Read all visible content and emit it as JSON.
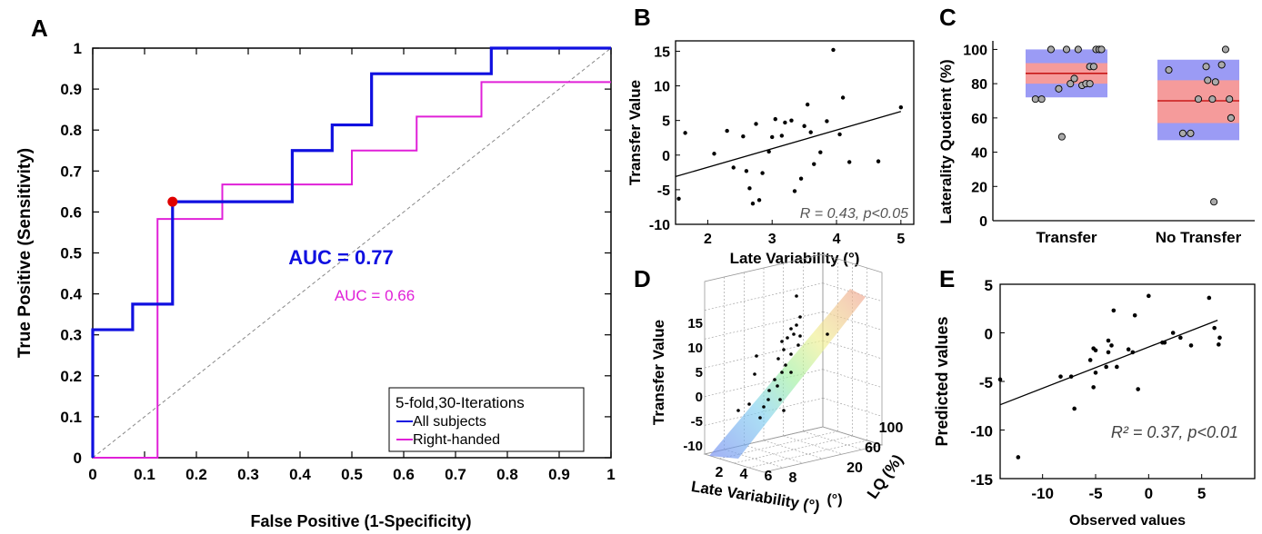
{
  "panels": {
    "A": "A",
    "B": "B",
    "C": "C",
    "D": "D",
    "E": "E"
  },
  "chart_data": [
    {
      "id": "A",
      "type": "line",
      "xlabel": "False Positive (1-Specificity)",
      "ylabel": "True Positive (Sensitivity)",
      "xlim": [
        0,
        1
      ],
      "ylim": [
        0,
        1
      ],
      "xticks": [
        "0",
        "0.1",
        "0.2",
        "0.3",
        "0.4",
        "0.5",
        "0.6",
        "0.7",
        "0.8",
        "0.9",
        "1"
      ],
      "yticks": [
        "0",
        "0.1",
        "0.2",
        "0.3",
        "0.4",
        "0.5",
        "0.6",
        "0.7",
        "0.8",
        "0.9",
        "1"
      ],
      "series": [
        {
          "name": "All subjects",
          "color": "#1010e0",
          "x": [
            0,
            0,
            0.077,
            0.077,
            0.154,
            0.154,
            0.385,
            0.385,
            0.462,
            0.462,
            0.538,
            0.538,
            0.769,
            0.769,
            1
          ],
          "y": [
            0,
            0.3125,
            0.3125,
            0.375,
            0.375,
            0.625,
            0.625,
            0.75,
            0.75,
            0.8125,
            0.8125,
            0.9375,
            0.9375,
            1,
            1
          ]
        },
        {
          "name": "Right-handed",
          "color": "#e020d8",
          "x": [
            0,
            0.125,
            0.125,
            0.25,
            0.25,
            0.5,
            0.5,
            0.625,
            0.625,
            0.75,
            0.75,
            1
          ],
          "y": [
            0,
            0,
            0.583,
            0.583,
            0.667,
            0.667,
            0.75,
            0.75,
            0.833,
            0.833,
            0.917,
            0.917
          ]
        }
      ],
      "marker": {
        "x": 0.154,
        "y": 0.625,
        "color": "#e00000"
      },
      "auc_all": "AUC = 0.77",
      "auc_right": "AUC = 0.66",
      "legend_title": "5-fold,30-Iterations",
      "legend_position": "bottom-right"
    },
    {
      "id": "B",
      "type": "scatter",
      "xlabel": "Late Variability (°)",
      "ylabel": "Transfer Value",
      "xlim": [
        1.5,
        5.2
      ],
      "ylim": [
        -10,
        16.5
      ],
      "xticks": [
        "2",
        "3",
        "4",
        "5"
      ],
      "yticks": [
        "-10",
        "-5",
        "0",
        "5",
        "10",
        "15"
      ],
      "x": [
        1.55,
        1.65,
        2.1,
        2.3,
        2.4,
        2.55,
        2.6,
        2.65,
        2.7,
        2.75,
        2.8,
        2.85,
        2.95,
        3.0,
        3.05,
        3.15,
        3.2,
        3.3,
        3.35,
        3.45,
        3.5,
        3.55,
        3.6,
        3.65,
        3.75,
        3.85,
        3.95,
        4.05,
        4.1,
        4.2,
        4.65,
        5.0
      ],
      "y": [
        -6.3,
        3.2,
        0.2,
        3.5,
        -1.8,
        2.7,
        -2.3,
        -4.8,
        -7.0,
        4.5,
        -6.5,
        -2.6,
        0.5,
        2.6,
        5.2,
        2.8,
        4.7,
        5.0,
        -5.2,
        -3.4,
        4.2,
        7.3,
        3.3,
        -1.3,
        0.4,
        4.9,
        15.2,
        3.0,
        8.3,
        -1.0,
        -0.9,
        6.9
      ],
      "fit": {
        "x": [
          1.5,
          5.0
        ],
        "y": [
          -3.1,
          6.3
        ]
      },
      "annotation": "R = 0.43, p<0.05"
    },
    {
      "id": "C",
      "type": "scatter",
      "ylabel": "Laterality Quotient (%)",
      "ylim": [
        0,
        105
      ],
      "yticks": [
        "0",
        "20",
        "40",
        "60",
        "80",
        "100"
      ],
      "categories": [
        "Transfer",
        "No Transfer"
      ],
      "boxes": [
        {
          "category": "Transfer",
          "mean": 86,
          "sd_low": 72,
          "sd_high": 100,
          "se_low": 80,
          "se_high": 92,
          "points": [
            [
              -0.4,
              71
            ],
            [
              -0.32,
              71
            ],
            [
              -0.2,
              100
            ],
            [
              -0.1,
              77
            ],
            [
              -0.06,
              49
            ],
            [
              0.0,
              100
            ],
            [
              0.05,
              80
            ],
            [
              0.1,
              83
            ],
            [
              0.15,
              100
            ],
            [
              0.2,
              79
            ],
            [
              0.25,
              80
            ],
            [
              0.3,
              90
            ],
            [
              0.35,
              90
            ],
            [
              0.38,
              100
            ],
            [
              0.42,
              100
            ],
            [
              0.45,
              100
            ],
            [
              0.3,
              80
            ]
          ]
        },
        {
          "category": "No Transfer",
          "mean": 70,
          "sd_low": 47,
          "sd_high": 94,
          "se_low": 57,
          "se_high": 82,
          "points": [
            [
              -0.38,
              88
            ],
            [
              -0.2,
              51
            ],
            [
              -0.1,
              51
            ],
            [
              0.0,
              71
            ],
            [
              0.1,
              90
            ],
            [
              0.12,
              82
            ],
            [
              0.2,
              11
            ],
            [
              0.22,
              81
            ],
            [
              0.3,
              91
            ],
            [
              0.35,
              100
            ],
            [
              0.4,
              71
            ],
            [
              0.42,
              60
            ],
            [
              0.18,
              71
            ]
          ]
        }
      ]
    },
    {
      "id": "D",
      "type": "scatter",
      "xlabel": "Late Variability (°)",
      "ylabel": "Transfer Value",
      "zlabel": "LQ (%)",
      "xticks": [
        "2",
        "4",
        "6",
        "8"
      ],
      "yticks": [
        "-10",
        "-5",
        "0",
        "5",
        "10",
        "15"
      ],
      "zticks": [
        "20",
        "60",
        "100"
      ]
    },
    {
      "id": "E",
      "type": "scatter",
      "xlabel": "Observed values",
      "ylabel": "Predicted values",
      "xlim": [
        -14,
        10
      ],
      "ylim": [
        -15,
        5
      ],
      "xticks": [
        "-10",
        "-5",
        "0",
        "5"
      ],
      "yticks": [
        "-15",
        "-10",
        "-5",
        "0",
        "5"
      ],
      "x": [
        -14,
        -12.3,
        -8.3,
        -7.3,
        -7.0,
        -5.5,
        -5.2,
        -5.2,
        -5.0,
        -5.0,
        -4.0,
        -3.8,
        -3.8,
        -3.5,
        -3.3,
        -3.0,
        -1.9,
        -1.5,
        -1.3,
        -1.0,
        0.0,
        1.3,
        1.5,
        2.3,
        3.0,
        4.0,
        5.7,
        6.2,
        6.6,
        6.7
      ],
      "y": [
        -4.8,
        -12.8,
        -4.5,
        -4.5,
        -7.8,
        -2.8,
        -5.6,
        -1.6,
        -1.8,
        -4.1,
        -3.5,
        -0.8,
        -2.0,
        -1.3,
        2.3,
        -3.5,
        -1.7,
        -2.0,
        1.8,
        -5.8,
        3.8,
        -1.0,
        -1.0,
        0.0,
        -0.5,
        -1.3,
        3.6,
        0.5,
        -1.2,
        -0.5
      ],
      "fit": {
        "x": [
          -14,
          6.5
        ],
        "y": [
          -7.4,
          1.3
        ]
      },
      "annotation": "R² = 0.37, p<0.01"
    }
  ]
}
